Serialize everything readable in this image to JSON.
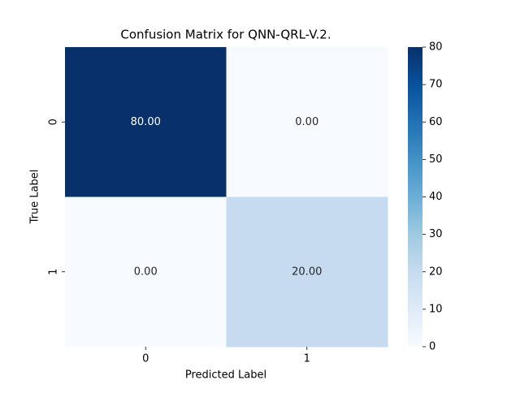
{
  "chart_data": {
    "type": "heatmap",
    "title": "Confusion Matrix for QNN-QRL-V.2.",
    "x_label": "Predicted Label",
    "y_label": "True Label",
    "x_categories": [
      "0",
      "1"
    ],
    "y_categories": [
      "0",
      "1"
    ],
    "values": [
      [
        80,
        0
      ],
      [
        0,
        20
      ]
    ],
    "value_labels": [
      [
        "80.00",
        "0.00"
      ],
      [
        "0.00",
        "20.00"
      ]
    ],
    "colormap": "Blues",
    "clim": [
      0,
      80
    ],
    "colorbar_ticks": [
      0,
      10,
      20,
      30,
      40,
      50,
      60,
      70,
      80
    ]
  }
}
